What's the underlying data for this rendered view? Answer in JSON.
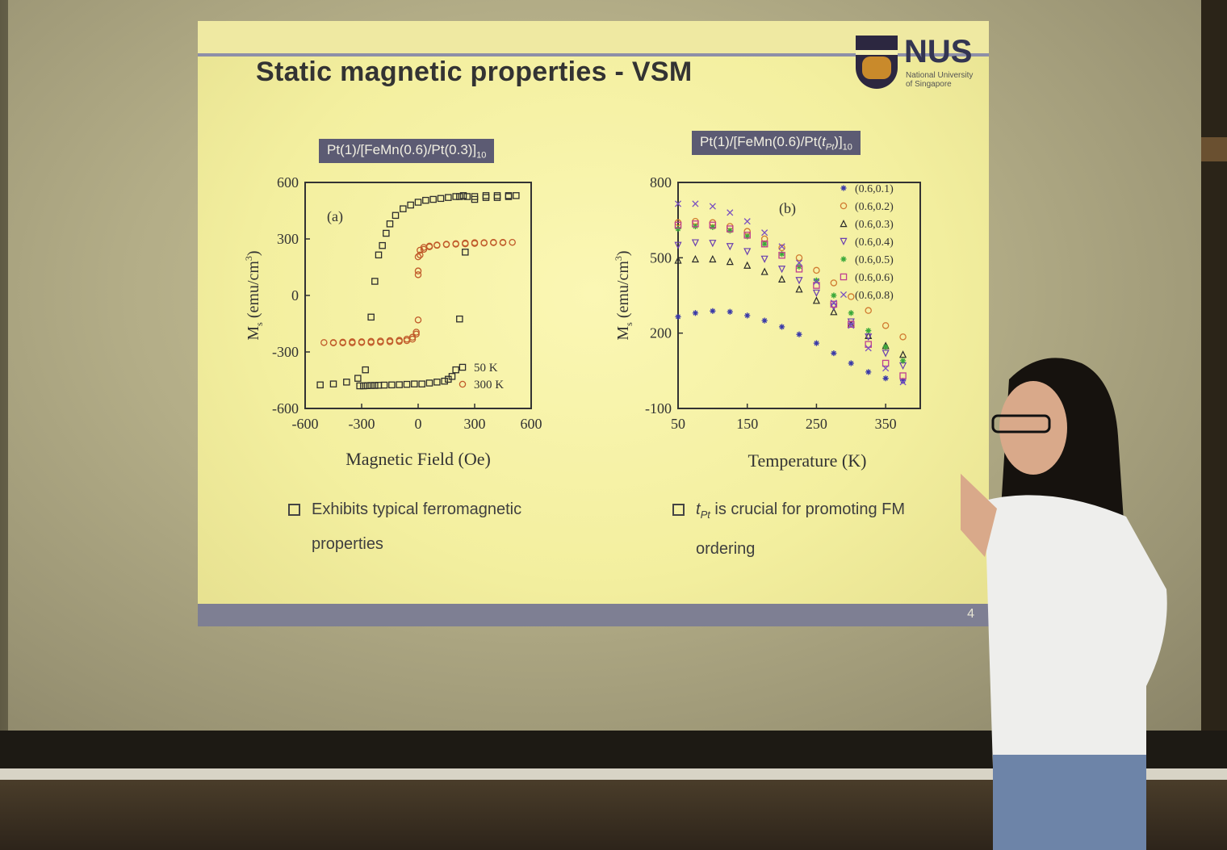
{
  "slide": {
    "title": "Static magnetic properties - VSM",
    "page_number": "4",
    "logo": {
      "word": "NUS",
      "sub_line1": "National University",
      "sub_line2": "of Singapore"
    },
    "left_tag": {
      "main": "Pt(1)/[FeMn(0.6)/Pt(0.3)]",
      "sub": "10"
    },
    "right_tag": {
      "main": "Pt(1)/[FeMn(0.6)/Pt(",
      "italic": "t",
      "italic_sub": "Pt",
      "tail": ")]",
      "sub": "10"
    },
    "left_bullet": {
      "line1": "Exhibits typical ferromagnetic",
      "line2": "properties"
    },
    "right_bullet": {
      "italic": "t",
      "italic_sub": "Pt",
      "line1": " is crucial for promoting FM",
      "line2": "ordering"
    }
  },
  "chart_data": [
    {
      "type": "scatter",
      "panel_label": "(a)",
      "xlabel": "Magnetic Field (Oe)",
      "ylabel": "M",
      "ylabel_sub": "s",
      "ylabel_unit": " (emu/cm",
      "ylabel_sup": "3",
      "ylabel_close": ")",
      "xlim": [
        -600,
        600
      ],
      "ylim": [
        -600,
        600
      ],
      "xticks": [
        "-600",
        "-300",
        "0",
        "300",
        "600"
      ],
      "yticks": [
        "600",
        "300",
        "0",
        "-300",
        "-600"
      ],
      "legend_position": "bottom-right",
      "series": [
        {
          "name": "50 K",
          "marker": "square",
          "color": "#2d2d2d",
          "x": [
            -520,
            -450,
            -380,
            -320,
            -280,
            -250,
            -230,
            -210,
            -190,
            -170,
            -150,
            -120,
            -80,
            -40,
            0,
            40,
            80,
            120,
            160,
            200,
            220,
            240,
            260,
            300,
            360,
            420,
            480,
            520,
            480,
            420,
            360,
            300,
            250,
            220,
            200,
            180,
            160,
            140,
            100,
            60,
            20,
            -20,
            -60,
            -100,
            -140,
            -180,
            -210,
            -230,
            -250,
            -270,
            -290,
            -310
          ],
          "y": [
            -475,
            -470,
            -460,
            -440,
            -395,
            -115,
            75,
            215,
            265,
            330,
            380,
            425,
            460,
            480,
            495,
            505,
            510,
            515,
            520,
            525,
            525,
            530,
            525,
            525,
            530,
            530,
            530,
            530,
            525,
            520,
            520,
            510,
            230,
            -125,
            -395,
            -430,
            -445,
            -455,
            -460,
            -465,
            -470,
            -470,
            -472,
            -474,
            -475,
            -476,
            -477,
            -478,
            -478,
            -479,
            -480,
            -480
          ]
        },
        {
          "name": "300 K",
          "marker": "circle",
          "color": "#c05a2a",
          "x": [
            -500,
            -450,
            -400,
            -350,
            -300,
            -250,
            -200,
            -150,
            -100,
            -60,
            -30,
            -10,
            0,
            0,
            0,
            10,
            30,
            60,
            100,
            150,
            200,
            250,
            300,
            350,
            400,
            450,
            500,
            450,
            400,
            350,
            300,
            250,
            200,
            150,
            100,
            60,
            30,
            10,
            0,
            -10,
            -30,
            -60,
            -100,
            -150,
            -200,
            -250,
            -300,
            -350,
            -400,
            -450
          ],
          "y": [
            -250,
            -250,
            -248,
            -246,
            -246,
            -244,
            -242,
            -240,
            -238,
            -232,
            -222,
            -195,
            -130,
            110,
            205,
            240,
            255,
            262,
            268,
            272,
            275,
            278,
            280,
            280,
            282,
            282,
            282,
            280,
            280,
            278,
            276,
            274,
            272,
            270,
            266,
            258,
            245,
            215,
            130,
            -205,
            -232,
            -240,
            -244,
            -246,
            -248,
            -250,
            -250,
            -252,
            -252,
            -252
          ]
        }
      ]
    },
    {
      "type": "scatter",
      "panel_label": "(b)",
      "xlabel": "Temperature (K)",
      "ylabel": "M",
      "ylabel_sub": "s",
      "ylabel_unit": " (emu/cm",
      "ylabel_sup": "3",
      "ylabel_close": ")",
      "xlim": [
        50,
        400
      ],
      "ylim": [
        -100,
        800
      ],
      "xticks": [
        "50",
        "150",
        "250",
        "350"
      ],
      "yticks": [
        "800",
        "500",
        "200",
        "-100"
      ],
      "legend_position": "top-right",
      "x": [
        50,
        75,
        100,
        125,
        150,
        175,
        200,
        225,
        250,
        275,
        300,
        325,
        350,
        375
      ],
      "series": [
        {
          "name": "(0.6,0.1)",
          "marker": "star",
          "color": "#3a3aa8",
          "y": [
            265,
            280,
            288,
            285,
            270,
            250,
            225,
            195,
            160,
            120,
            80,
            45,
            20,
            10
          ]
        },
        {
          "name": "(0.6,0.2)",
          "marker": "circle",
          "color": "#d07a30",
          "y": [
            640,
            645,
            640,
            625,
            605,
            575,
            540,
            500,
            450,
            400,
            345,
            290,
            230,
            185
          ]
        },
        {
          "name": "(0.6,0.3)",
          "marker": "triangle-up",
          "color": "#2a2a2a",
          "y": [
            490,
            495,
            495,
            485,
            470,
            445,
            415,
            375,
            330,
            285,
            235,
            190,
            150,
            115
          ]
        },
        {
          "name": "(0.6,0.4)",
          "marker": "triangle-down",
          "color": "#6a3fb0",
          "y": [
            550,
            560,
            558,
            545,
            525,
            495,
            455,
            410,
            360,
            305,
            245,
            185,
            120,
            70
          ]
        },
        {
          "name": "(0.6,0.5)",
          "marker": "star",
          "color": "#3aa83a",
          "y": [
            615,
            625,
            622,
            608,
            585,
            555,
            515,
            465,
            410,
            350,
            280,
            210,
            145,
            90
          ]
        },
        {
          "name": "(0.6,0.6)",
          "marker": "square",
          "color": "#c0408f",
          "y": [
            630,
            635,
            630,
            615,
            590,
            555,
            510,
            455,
            390,
            315,
            235,
            155,
            80,
            30
          ]
        },
        {
          "name": "(0.6,0.8)",
          "marker": "cross",
          "color": "#7a50c0",
          "y": [
            715,
            715,
            705,
            680,
            645,
            600,
            545,
            480,
            405,
            320,
            230,
            140,
            60,
            5
          ]
        }
      ]
    }
  ]
}
